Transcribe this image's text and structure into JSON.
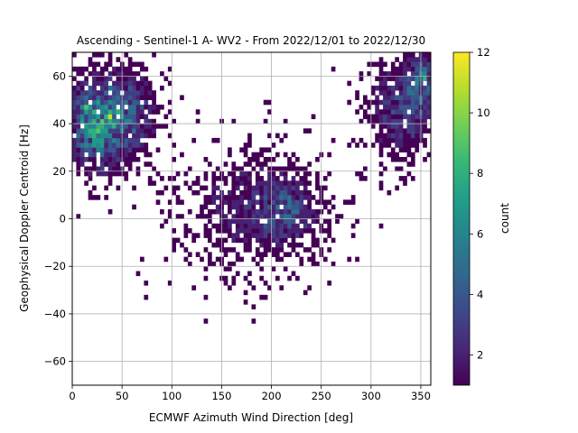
{
  "chart_data": {
    "type": "heatmap",
    "title": "Ascending - Sentinel-1 A- WV2 - From 2022/12/01 to 2022/12/30",
    "xlabel": "ECMWF Azimuth Wind Direction [deg]",
    "ylabel": "Geophysical Doppler Centroid [Hz]",
    "xlim": [
      0,
      360
    ],
    "ylim": [
      -70,
      70
    ],
    "xticks": [
      0,
      50,
      100,
      150,
      200,
      250,
      300,
      350
    ],
    "yticks": [
      -60,
      -40,
      -20,
      0,
      20,
      40,
      60
    ],
    "grid": true,
    "bin_width_x": 4,
    "bin_width_y": 2,
    "colorbar": {
      "label": "count",
      "min": 1,
      "max": 12,
      "ticks": [
        2,
        4,
        6,
        8,
        10,
        12
      ],
      "colormap": "viridis"
    },
    "density_clusters": [
      {
        "x": 25,
        "y": 40,
        "sx": 20,
        "sy": 12,
        "peak": 7
      },
      {
        "x": 60,
        "y": 45,
        "sx": 18,
        "sy": 12,
        "peak": 3
      },
      {
        "x": 180,
        "y": 5,
        "sx": 45,
        "sy": 16,
        "peak": 2
      },
      {
        "x": 215,
        "y": 3,
        "sx": 18,
        "sy": 8,
        "peak": 3
      },
      {
        "x": 330,
        "y": 45,
        "sx": 22,
        "sy": 14,
        "peak": 3
      },
      {
        "x": 350,
        "y": 58,
        "sx": 10,
        "sy": 8,
        "peak": 4
      }
    ],
    "hotspots": [
      {
        "x": 38,
        "y": 42,
        "count": 11
      },
      {
        "x": 14,
        "y": 47,
        "count": 9
      },
      {
        "x": 22,
        "y": 44,
        "count": 8
      },
      {
        "x": 355,
        "y": 58,
        "count": 8
      },
      {
        "x": 30,
        "y": 36,
        "count": 7
      },
      {
        "x": 10,
        "y": 40,
        "count": 7
      }
    ],
    "colors": {
      "viridis": [
        "#440154",
        "#482878",
        "#3e4989",
        "#31688e",
        "#26828e",
        "#1f9e89",
        "#35b779",
        "#6ece58",
        "#b5de2b",
        "#fde725"
      ],
      "grid": "#b0b0b0",
      "axes": "#000000"
    }
  }
}
